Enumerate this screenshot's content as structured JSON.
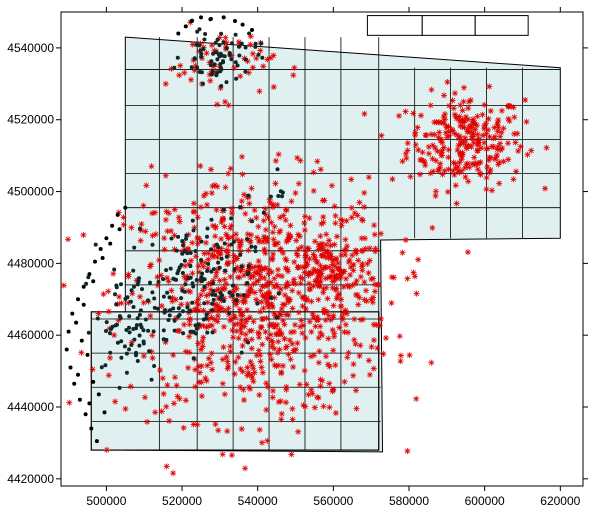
{
  "chart_data": {
    "type": "scatter",
    "title": "",
    "xlabel": "",
    "ylabel": "",
    "xlim": [
      488000,
      626000
    ],
    "ylim": [
      4418000,
      4550000
    ],
    "x_ticks": [
      500000,
      520000,
      540000,
      560000,
      580000,
      600000,
      620000
    ],
    "y_ticks": [
      4420000,
      4440000,
      4460000,
      4480000,
      4500000,
      4520000,
      4540000
    ],
    "x_tick_labels": [
      "500000",
      "520000",
      "540000",
      "560000",
      "580000",
      "600000",
      "620000"
    ],
    "y_tick_labels": [
      "4420000",
      "4440000",
      "4460000",
      "4480000",
      "4500000",
      "4520000",
      "4540000"
    ],
    "grid": false,
    "region_fill": "#e0f0f0",
    "region_edge": "#000000",
    "region_outline": [
      [
        505000,
        4428000
      ],
      [
        573000,
        4427500
      ],
      [
        572500,
        4486500
      ],
      [
        620000,
        4487000
      ],
      [
        620000,
        4534500
      ],
      [
        505000,
        4543000
      ]
    ],
    "grid_lines_x": [
      514000,
      524000,
      533500,
      543000,
      552500,
      562000,
      572000,
      581500,
      591000,
      600500,
      610000
    ],
    "grid_lines_y": [
      4436000,
      4445500,
      4455000,
      4464500,
      4474000,
      4483500,
      4495500,
      4505000,
      4514500,
      4524000,
      4534000
    ],
    "inset_box": [
      496000,
      4428000,
      572000,
      4466500
    ],
    "top_tabs": [
      [
        569000,
        4543500,
        583500,
        4549000
      ],
      [
        583500,
        4543500,
        597500,
        4549000
      ],
      [
        597500,
        4543500,
        611500,
        4549000
      ]
    ],
    "series": [
      {
        "marker": "circle",
        "color": "#102828",
        "cluster_centers": [
          [
            530000,
            4538000,
            9000,
            7000,
            70
          ],
          [
            522000,
            4474000,
            15000,
            16000,
            160
          ],
          [
            506000,
            4462000,
            8000,
            14000,
            60
          ],
          [
            542000,
            4500000,
            6000,
            6000,
            10
          ]
        ],
        "fringe_color": "#000000",
        "fringe_points": [
          [
            491000,
            4466000
          ],
          [
            492500,
            4470000
          ],
          [
            494000,
            4473500
          ],
          [
            495500,
            4477000
          ],
          [
            497000,
            4480500
          ],
          [
            498500,
            4484000
          ],
          [
            500000,
            4487000
          ],
          [
            501500,
            4490500
          ],
          [
            503000,
            4493500
          ],
          [
            490000,
            4461000
          ],
          [
            489500,
            4456000
          ],
          [
            490500,
            4451000
          ],
          [
            491500,
            4446500
          ],
          [
            493000,
            4442000
          ],
          [
            494500,
            4438000
          ],
          [
            496000,
            4434000
          ],
          [
            497500,
            4430500
          ],
          [
            492000,
            4463500
          ],
          [
            494000,
            4468500
          ],
          [
            496500,
            4475000
          ],
          [
            499000,
            4481500
          ],
          [
            501000,
            4485500
          ],
          [
            503500,
            4489500
          ],
          [
            505000,
            4495500
          ],
          [
            493500,
            4458500
          ],
          [
            495000,
            4454500
          ],
          [
            492500,
            4449000
          ],
          [
            496500,
            4447000
          ],
          [
            498000,
            4443500
          ],
          [
            495500,
            4441000
          ],
          [
            499500,
            4438500
          ],
          [
            522500,
            4547500
          ],
          [
            525000,
            4548500
          ],
          [
            527500,
            4548000
          ],
          [
            531000,
            4548500
          ],
          [
            534000,
            4547500
          ],
          [
            521000,
            4546000
          ],
          [
            519000,
            4544000
          ],
          [
            536000,
            4546500
          ],
          [
            538500,
            4545000
          ]
        ]
      },
      {
        "marker": "asterisk",
        "color": "#e00000",
        "clusters": [
          [
            595000,
            4514000,
            14000,
            12000,
            260
          ],
          [
            540000,
            4470000,
            32000,
            30000,
            900
          ],
          [
            530000,
            4536000,
            13000,
            9000,
            60
          ],
          [
            560000,
            4478000,
            12000,
            10000,
            120
          ]
        ]
      }
    ]
  }
}
